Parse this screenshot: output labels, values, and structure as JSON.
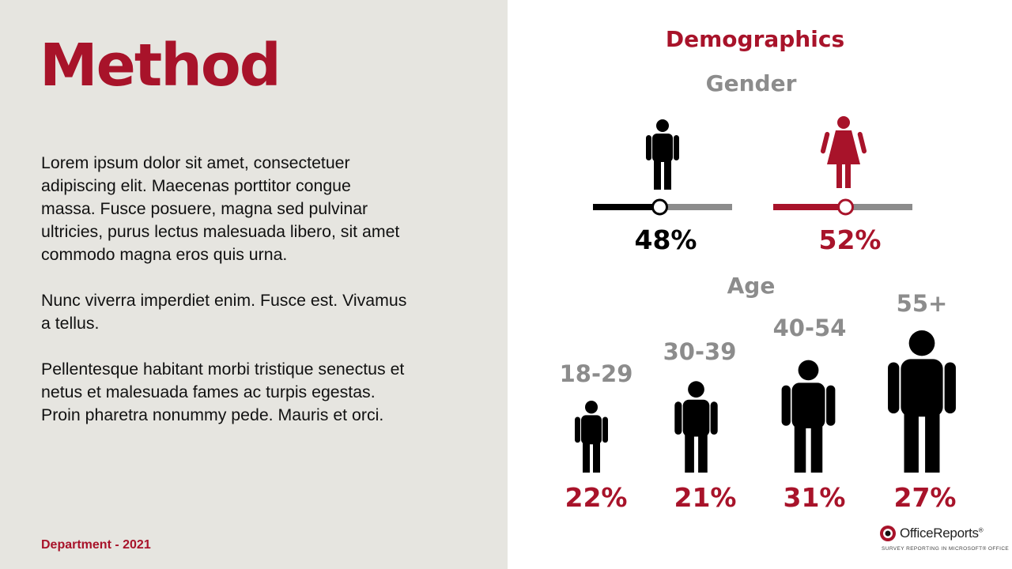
{
  "slide": {
    "title": "Method",
    "paragraphs": [
      "Lorem ipsum dolor sit amet, consectetuer adipiscing elit. Maecenas porttitor congue massa. Fusce posuere, magna sed pulvinar ultricies, purus lectus malesuada libero, sit amet commodo magna eros quis urna.",
      "Nunc viverra imperdiet enim. Fusce est. Vivamus a tellus.",
      "Pellentesque habitant morbi tristique senectus et netus et malesuada fames ac turpis egestas. Proin pharetra nonummy pede. Mauris et orci."
    ],
    "footer": "Department - 2021"
  },
  "demographics": {
    "title": "Demographics",
    "gender": {
      "title": "Gender",
      "male": {
        "label": "48%",
        "value": 0.48,
        "color": "#000000"
      },
      "female": {
        "label": "52%",
        "value": 0.52,
        "color": "#a8132a"
      }
    },
    "age": {
      "title": "Age",
      "groups": [
        {
          "range": "18-29",
          "label": "22%",
          "value": 22
        },
        {
          "range": "30-39",
          "label": "21%",
          "value": 21
        },
        {
          "range": "40-54",
          "label": "31%",
          "value": 31
        },
        {
          "range": "55+",
          "label": "27%",
          "value": 27
        }
      ]
    }
  },
  "logo": {
    "name": "OfficeReports",
    "mark": "®",
    "tagline": "SURVEY REPORTING IN MICROSOFT® OFFICE"
  },
  "colors": {
    "accent": "#a8132a",
    "muted": "#8c8c8c",
    "track": "#8c8c8c",
    "panel": "#e6e5e0"
  }
}
